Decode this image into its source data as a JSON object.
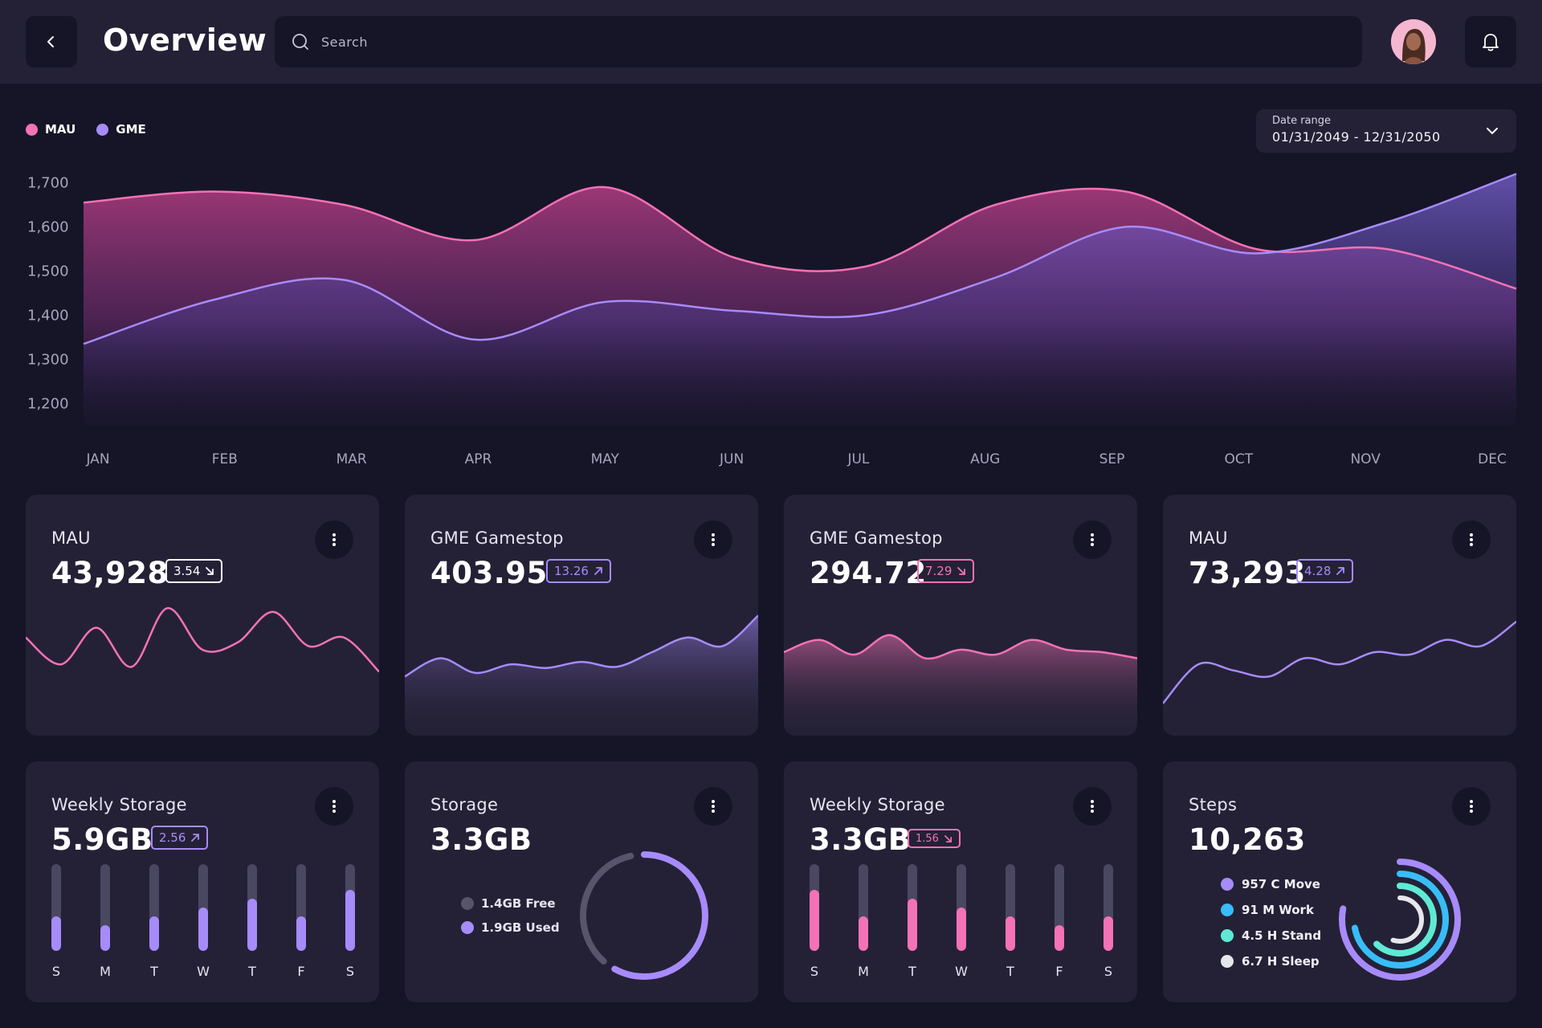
{
  "header": {
    "title": "Overview",
    "search_placeholder": "Search"
  },
  "legend": [
    {
      "label": "MAU",
      "color": "#f472b6"
    },
    {
      "label": "GME",
      "color": "#a78bfa"
    }
  ],
  "date_range": {
    "label": "Date range",
    "value": "01/31/2049 - 12/31/2050"
  },
  "chart_data": {
    "type": "area",
    "categories": [
      "JAN",
      "FEB",
      "MAR",
      "APR",
      "MAY",
      "JUN",
      "JUL",
      "AUG",
      "SEP",
      "OCT",
      "NOV",
      "DEC"
    ],
    "ylim": [
      1150,
      1750
    ],
    "yticks": [
      "1,700",
      "1,600",
      "1,500",
      "1,400",
      "1,300",
      "1,200"
    ],
    "series": [
      {
        "name": "MAU",
        "color": "#f472b6",
        "values": [
          1655,
          1680,
          1650,
          1570,
          1690,
          1530,
          1510,
          1650,
          1680,
          1550,
          1550,
          1460
        ]
      },
      {
        "name": "GME",
        "color": "#a78bfa",
        "values": [
          1335,
          1435,
          1480,
          1345,
          1430,
          1410,
          1400,
          1485,
          1600,
          1540,
          1610,
          1720
        ]
      }
    ]
  },
  "cards": [
    {
      "title": "MAU",
      "value": "43,928",
      "badge": "3.54",
      "trend": "down",
      "color": "#f472b6",
      "badge_color": "#ffffff",
      "fill": false,
      "spark": [
        62,
        40,
        70,
        38,
        86,
        52,
        58,
        83,
        55,
        62,
        34
      ]
    },
    {
      "title": "GME Gamestop",
      "value": "403.95",
      "badge": "13.26",
      "trend": "up",
      "color": "#a78bfa",
      "badge_color": "#a78bfa",
      "fill": true,
      "spark": [
        30,
        45,
        33,
        40,
        37,
        42,
        38,
        50,
        62,
        55,
        80
      ]
    },
    {
      "title": "GME Gamestop",
      "value": "294.72",
      "badge": "7.29",
      "trend": "down",
      "color": "#f472b6",
      "badge_color": "#f472b6",
      "fill": true,
      "spark": [
        50,
        60,
        48,
        64,
        45,
        52,
        48,
        60,
        52,
        50,
        45
      ]
    },
    {
      "title": "MAU",
      "value": "73,293",
      "badge": "4.28",
      "trend": "up",
      "color": "#a78bfa",
      "badge_color": "#a78bfa",
      "fill": false,
      "spark": [
        8,
        40,
        35,
        30,
        45,
        40,
        50,
        48,
        60,
        55,
        75
      ]
    }
  ],
  "weekly_storage_1": {
    "title": "Weekly Storage",
    "value": "5.9GB",
    "badge": "2.56",
    "trend": "up",
    "badge_color": "#a78bfa",
    "color": "#a78bfa",
    "days": [
      "S",
      "M",
      "T",
      "W",
      "T",
      "F",
      "S"
    ],
    "levels": [
      0.4,
      0.3,
      0.4,
      0.5,
      0.6,
      0.4,
      0.7
    ]
  },
  "storage": {
    "title": "Storage",
    "value": "3.3GB",
    "free_label": "1.4GB Free",
    "used_label": "1.9GB Used",
    "free_color": "#57546b",
    "used_color": "#a78bfa",
    "used_fraction": 0.58
  },
  "weekly_storage_2": {
    "title": "Weekly Storage",
    "value": "3.3GB",
    "badge": "1.56",
    "trend": "down",
    "badge_color": "#f472b6",
    "color": "#f472b6",
    "days": [
      "S",
      "M",
      "T",
      "W",
      "T",
      "F",
      "S"
    ],
    "levels": [
      0.7,
      0.4,
      0.6,
      0.5,
      0.4,
      0.3,
      0.4
    ]
  },
  "steps": {
    "title": "Steps",
    "value": "10,263",
    "items": [
      {
        "label": "957 C Move",
        "color": "#a78bfa",
        "fraction": 0.78
      },
      {
        "label": "91 M Work",
        "color": "#38bdf8",
        "fraction": 0.72
      },
      {
        "label": "4.5 H Stand",
        "color": "#5eead4",
        "fraction": 0.62
      },
      {
        "label": "6.7 H Sleep",
        "color": "#e5e7eb",
        "fraction": 0.55
      }
    ]
  }
}
